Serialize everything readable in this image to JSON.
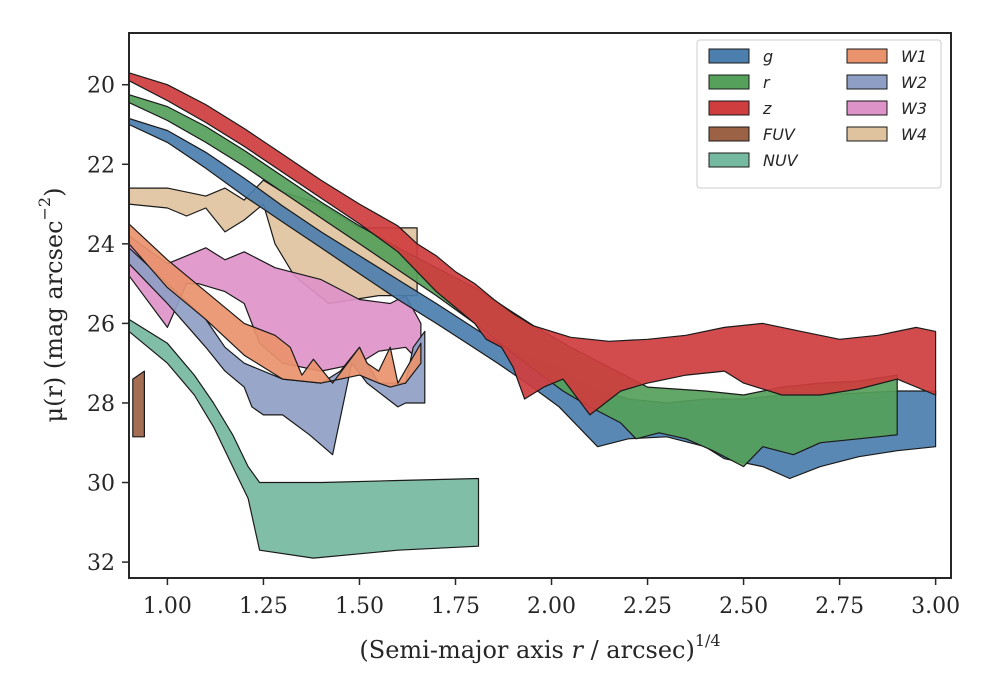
{
  "chart_data": {
    "type": "area",
    "title": "",
    "xlabel": "(Semi-major axis ",
    "xlabel_var": "r",
    "xlabel_tail": " / arcsec)",
    "xlabel_sup": "1/4",
    "ylabel": "μ(r) (mag arcsec",
    "ylabel_sup": "−2",
    "ylabel_close": ")",
    "xlim": [
      0.9,
      3.04
    ],
    "ylim": [
      32.4,
      18.7
    ],
    "y_inverted": true,
    "xticks": [
      1.0,
      1.25,
      1.5,
      1.75,
      2.0,
      2.25,
      2.5,
      2.75,
      3.0
    ],
    "xtick_labels": [
      "1.00",
      "1.25",
      "1.50",
      "1.75",
      "2.00",
      "2.25",
      "2.50",
      "2.75",
      "3.00"
    ],
    "yticks": [
      20,
      22,
      24,
      26,
      28,
      30,
      32
    ],
    "ytick_labels": [
      "20",
      "22",
      "24",
      "26",
      "28",
      "30",
      "32"
    ],
    "grid": false,
    "legend_position": "top-right",
    "legend_columns": 2,
    "series": [
      {
        "name": "g",
        "color": "#4c7eae",
        "upper": [
          [
            0.9,
            20.85
          ],
          [
            1.0,
            21.15
          ],
          [
            1.1,
            21.7
          ],
          [
            1.2,
            22.35
          ],
          [
            1.3,
            23.05
          ],
          [
            1.4,
            23.7
          ],
          [
            1.5,
            24.3
          ],
          [
            1.6,
            24.9
          ],
          [
            1.7,
            25.5
          ],
          [
            1.78,
            26.0
          ],
          [
            1.86,
            26.5
          ],
          [
            1.95,
            26.85
          ],
          [
            2.02,
            27.1
          ],
          [
            2.1,
            27.6
          ],
          [
            2.2,
            27.9
          ],
          [
            2.3,
            28.0
          ],
          [
            2.4,
            27.9
          ],
          [
            2.5,
            27.9
          ],
          [
            2.6,
            27.8
          ],
          [
            2.7,
            27.8
          ],
          [
            2.8,
            27.75
          ],
          [
            2.9,
            27.7
          ],
          [
            3.0,
            27.7
          ]
        ],
        "lower": [
          [
            3.0,
            29.1
          ],
          [
            2.9,
            29.2
          ],
          [
            2.8,
            29.35
          ],
          [
            2.7,
            29.6
          ],
          [
            2.62,
            29.9
          ],
          [
            2.55,
            29.6
          ],
          [
            2.45,
            29.4
          ],
          [
            2.4,
            29.1
          ],
          [
            2.3,
            28.85
          ],
          [
            2.2,
            28.9
          ],
          [
            2.12,
            29.1
          ],
          [
            2.07,
            28.6
          ],
          [
            2.02,
            28.1
          ],
          [
            1.95,
            27.6
          ],
          [
            1.86,
            27.0
          ],
          [
            1.78,
            26.5
          ],
          [
            1.7,
            26.0
          ],
          [
            1.6,
            25.4
          ],
          [
            1.5,
            24.75
          ],
          [
            1.4,
            24.1
          ],
          [
            1.3,
            23.45
          ],
          [
            1.2,
            22.8
          ],
          [
            1.1,
            22.1
          ],
          [
            1.0,
            21.45
          ],
          [
            0.9,
            21.0
          ]
        ]
      },
      {
        "name": "r",
        "color": "#55a05a",
        "upper": [
          [
            0.9,
            20.25
          ],
          [
            1.0,
            20.55
          ],
          [
            1.1,
            21.05
          ],
          [
            1.2,
            21.65
          ],
          [
            1.3,
            22.3
          ],
          [
            1.4,
            22.95
          ],
          [
            1.5,
            23.55
          ],
          [
            1.6,
            24.1
          ],
          [
            1.7,
            24.6
          ],
          [
            1.8,
            25.1
          ],
          [
            1.88,
            25.6
          ],
          [
            1.96,
            26.1
          ],
          [
            2.05,
            26.6
          ],
          [
            2.15,
            27.1
          ],
          [
            2.25,
            27.6
          ],
          [
            2.4,
            27.7
          ],
          [
            2.5,
            27.8
          ],
          [
            2.6,
            27.6
          ],
          [
            2.7,
            27.5
          ],
          [
            2.8,
            27.45
          ],
          [
            2.9,
            27.3
          ]
        ],
        "lower": [
          [
            2.9,
            28.8
          ],
          [
            2.8,
            28.9
          ],
          [
            2.7,
            29.0
          ],
          [
            2.63,
            29.3
          ],
          [
            2.55,
            29.1
          ],
          [
            2.5,
            29.6
          ],
          [
            2.42,
            29.2
          ],
          [
            2.35,
            28.9
          ],
          [
            2.28,
            28.75
          ],
          [
            2.22,
            28.9
          ],
          [
            2.18,
            28.5
          ],
          [
            2.1,
            28.1
          ],
          [
            2.03,
            27.7
          ],
          [
            1.96,
            27.2
          ],
          [
            1.88,
            26.6
          ],
          [
            1.8,
            26.0
          ],
          [
            1.7,
            25.3
          ],
          [
            1.6,
            24.65
          ],
          [
            1.5,
            24.0
          ],
          [
            1.4,
            23.35
          ],
          [
            1.3,
            22.7
          ],
          [
            1.2,
            22.05
          ],
          [
            1.1,
            21.45
          ],
          [
            1.0,
            20.9
          ],
          [
            0.9,
            20.45
          ]
        ]
      },
      {
        "name": "z",
        "color": "#cf3d3e",
        "upper": [
          [
            0.9,
            19.7
          ],
          [
            1.0,
            20.0
          ],
          [
            1.1,
            20.5
          ],
          [
            1.2,
            21.1
          ],
          [
            1.3,
            21.75
          ],
          [
            1.4,
            22.4
          ],
          [
            1.5,
            23.0
          ],
          [
            1.6,
            23.55
          ],
          [
            1.65,
            24.0
          ],
          [
            1.7,
            24.3
          ],
          [
            1.75,
            24.7
          ],
          [
            1.8,
            25.0
          ],
          [
            1.85,
            25.4
          ],
          [
            1.9,
            25.75
          ],
          [
            1.95,
            26.05
          ],
          [
            2.05,
            26.35
          ],
          [
            2.15,
            26.45
          ],
          [
            2.25,
            26.4
          ],
          [
            2.35,
            26.3
          ],
          [
            2.45,
            26.1
          ],
          [
            2.55,
            26.0
          ],
          [
            2.65,
            26.2
          ],
          [
            2.75,
            26.4
          ],
          [
            2.85,
            26.3
          ],
          [
            2.95,
            26.1
          ],
          [
            3.0,
            26.2
          ]
        ],
        "lower": [
          [
            3.0,
            27.8
          ],
          [
            2.9,
            27.4
          ],
          [
            2.8,
            27.65
          ],
          [
            2.7,
            27.8
          ],
          [
            2.6,
            27.8
          ],
          [
            2.5,
            27.5
          ],
          [
            2.45,
            27.2
          ],
          [
            2.35,
            27.3
          ],
          [
            2.25,
            27.5
          ],
          [
            2.18,
            27.7
          ],
          [
            2.1,
            28.3
          ],
          [
            2.03,
            27.4
          ],
          [
            1.98,
            27.6
          ],
          [
            1.93,
            27.9
          ],
          [
            1.9,
            27.1
          ],
          [
            1.87,
            26.6
          ],
          [
            1.83,
            26.4
          ],
          [
            1.8,
            26.0
          ],
          [
            1.75,
            25.6
          ],
          [
            1.7,
            25.2
          ],
          [
            1.65,
            24.7
          ],
          [
            1.6,
            24.2
          ],
          [
            1.5,
            23.5
          ],
          [
            1.4,
            22.85
          ],
          [
            1.3,
            22.2
          ],
          [
            1.2,
            21.55
          ],
          [
            1.1,
            20.95
          ],
          [
            1.0,
            20.4
          ],
          [
            0.9,
            19.9
          ]
        ]
      },
      {
        "name": "FUV",
        "color": "#9c6245",
        "upper": [
          [
            0.91,
            27.4
          ],
          [
            0.94,
            27.2
          ]
        ],
        "lower": [
          [
            0.94,
            28.85
          ],
          [
            0.91,
            28.85
          ]
        ]
      },
      {
        "name": "NUV",
        "color": "#75b9a1",
        "upper": [
          [
            0.9,
            25.9
          ],
          [
            1.0,
            26.5
          ],
          [
            1.07,
            27.3
          ],
          [
            1.12,
            28.0
          ],
          [
            1.17,
            28.8
          ],
          [
            1.21,
            29.6
          ],
          [
            1.24,
            30.0
          ],
          [
            1.4,
            30.0
          ],
          [
            1.6,
            29.95
          ],
          [
            1.81,
            29.9
          ]
        ],
        "lower": [
          [
            1.81,
            31.6
          ],
          [
            1.6,
            31.7
          ],
          [
            1.38,
            31.9
          ],
          [
            1.24,
            31.7
          ],
          [
            1.21,
            30.4
          ],
          [
            1.17,
            29.6
          ],
          [
            1.12,
            28.6
          ],
          [
            1.07,
            27.8
          ],
          [
            1.0,
            27.0
          ],
          [
            0.9,
            26.2
          ]
        ]
      },
      {
        "name": "W1",
        "color": "#e9936d",
        "upper": [
          [
            0.9,
            23.5
          ],
          [
            1.0,
            24.4
          ],
          [
            1.1,
            25.2
          ],
          [
            1.2,
            26.0
          ],
          [
            1.28,
            26.3
          ],
          [
            1.32,
            26.6
          ],
          [
            1.35,
            27.3
          ],
          [
            1.38,
            26.9
          ],
          [
            1.43,
            27.5
          ],
          [
            1.5,
            26.6
          ],
          [
            1.52,
            27.0
          ],
          [
            1.55,
            27.2
          ],
          [
            1.58,
            26.6
          ],
          [
            1.6,
            27.5
          ],
          [
            1.63,
            27.0
          ],
          [
            1.66,
            26.5
          ]
        ],
        "lower": [
          [
            1.66,
            27.0
          ],
          [
            1.62,
            27.5
          ],
          [
            1.58,
            27.6
          ],
          [
            1.55,
            27.5
          ],
          [
            1.5,
            27.3
          ],
          [
            1.4,
            27.5
          ],
          [
            1.3,
            27.4
          ],
          [
            1.2,
            26.8
          ],
          [
            1.1,
            25.9
          ],
          [
            1.0,
            25.1
          ],
          [
            0.9,
            24.0
          ]
        ]
      },
      {
        "name": "W2",
        "color": "#8f9ec5",
        "upper": [
          [
            0.9,
            24.1
          ],
          [
            1.0,
            25.0
          ],
          [
            1.1,
            25.9
          ],
          [
            1.15,
            26.6
          ],
          [
            1.2,
            27.0
          ],
          [
            1.3,
            27.4
          ],
          [
            1.4,
            27.5
          ],
          [
            1.45,
            27.2
          ],
          [
            1.5,
            26.6
          ],
          [
            1.52,
            27.0
          ],
          [
            1.55,
            27.5
          ],
          [
            1.58,
            27.5
          ],
          [
            1.62,
            27.5
          ],
          [
            1.64,
            26.6
          ],
          [
            1.67,
            26.2
          ]
        ],
        "lower": [
          [
            1.67,
            28.0
          ],
          [
            1.62,
            28.0
          ],
          [
            1.6,
            28.1
          ],
          [
            1.56,
            27.8
          ],
          [
            1.52,
            27.5
          ],
          [
            1.48,
            27.0
          ],
          [
            1.43,
            29.3
          ],
          [
            1.37,
            28.8
          ],
          [
            1.3,
            28.3
          ],
          [
            1.25,
            28.3
          ],
          [
            1.22,
            28.1
          ],
          [
            1.2,
            27.6
          ],
          [
            1.15,
            27.2
          ],
          [
            1.1,
            26.6
          ],
          [
            1.0,
            25.5
          ],
          [
            0.9,
            24.5
          ]
        ]
      },
      {
        "name": "W3",
        "color": "#de93c8",
        "upper": [
          [
            0.9,
            23.8
          ],
          [
            1.0,
            24.5
          ],
          [
            1.05,
            24.3
          ],
          [
            1.1,
            24.1
          ],
          [
            1.15,
            24.4
          ],
          [
            1.2,
            24.2
          ],
          [
            1.28,
            24.6
          ],
          [
            1.4,
            24.9
          ],
          [
            1.5,
            25.4
          ],
          [
            1.58,
            25.5
          ],
          [
            1.62,
            25.3
          ],
          [
            1.66,
            26.0
          ]
        ],
        "lower": [
          [
            1.66,
            27.0
          ],
          [
            1.62,
            26.6
          ],
          [
            1.55,
            26.7
          ],
          [
            1.5,
            27.0
          ],
          [
            1.4,
            27.2
          ],
          [
            1.3,
            27.0
          ],
          [
            1.24,
            26.5
          ],
          [
            1.2,
            25.5
          ],
          [
            1.15,
            25.2
          ],
          [
            1.08,
            25.0
          ],
          [
            1.05,
            25.0
          ],
          [
            1.0,
            26.1
          ],
          [
            0.9,
            24.8
          ]
        ]
      },
      {
        "name": "W4",
        "color": "#dfc39f",
        "upper": [
          [
            0.9,
            22.6
          ],
          [
            1.0,
            22.6
          ],
          [
            1.05,
            22.7
          ],
          [
            1.1,
            22.8
          ],
          [
            1.15,
            22.6
          ],
          [
            1.2,
            22.9
          ],
          [
            1.25,
            22.4
          ],
          [
            1.3,
            22.7
          ],
          [
            1.4,
            23.0
          ],
          [
            1.5,
            23.6
          ],
          [
            1.65,
            23.6
          ]
        ],
        "lower": [
          [
            1.65,
            25.3
          ],
          [
            1.55,
            25.3
          ],
          [
            1.42,
            25.5
          ],
          [
            1.33,
            24.8
          ],
          [
            1.28,
            24.0
          ],
          [
            1.25,
            23.0
          ],
          [
            1.2,
            23.4
          ],
          [
            1.15,
            23.7
          ],
          [
            1.1,
            23.1
          ],
          [
            1.05,
            23.3
          ],
          [
            1.0,
            23.1
          ],
          [
            0.9,
            23.0
          ]
        ]
      }
    ],
    "draw_order": [
      "W4",
      "W3",
      "W2",
      "W1",
      "NUV",
      "FUV",
      "g",
      "r",
      "z"
    ]
  }
}
